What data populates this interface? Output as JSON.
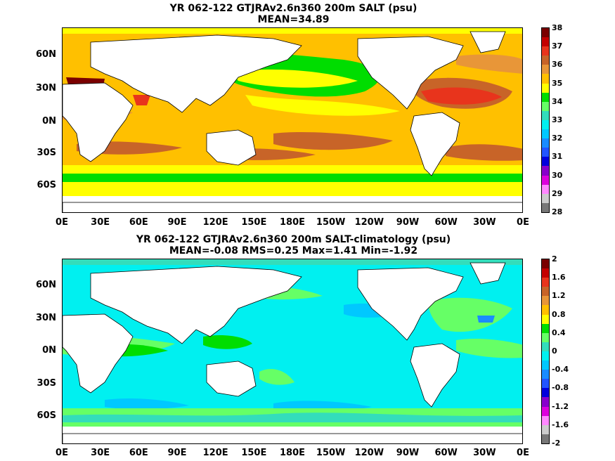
{
  "panels": [
    {
      "title": "YR 062-122 GTJRAv2.6n360 200m SALT (psu)",
      "subtitle": "MEAN=34.89",
      "colorbar": {
        "labels": [
          "38",
          "37",
          "36",
          "35",
          "34",
          "33",
          "32",
          "31",
          "30",
          "29",
          "28"
        ],
        "colors": [
          "#7a0000",
          "#c40000",
          "#e8341c",
          "#c86428",
          "#e89638",
          "#ffc000",
          "#ffff00",
          "#00dd00",
          "#66ff66",
          "#33ddbb",
          "#00f0f0",
          "#00c8ff",
          "#1a8cff",
          "#2255ff",
          "#0000dd",
          "#8800cc",
          "#dd00dd",
          "#ff88ff",
          "#cccccc",
          "#777777"
        ]
      }
    },
    {
      "title": "YR 062-122 GTJRAv2.6n360 200m SALT-climatology (psu)",
      "subtitle": "MEAN=-0.08   RMS=0.25   Max=1.41   Min=-1.92",
      "colorbar": {
        "labels": [
          "2",
          "1.6",
          "1.2",
          "0.8",
          "0.4",
          "0",
          "-0.4",
          "-0.8",
          "-1.2",
          "-1.6",
          "-2"
        ],
        "colors": [
          "#7a0000",
          "#c40000",
          "#e8341c",
          "#c86428",
          "#e89638",
          "#ffc000",
          "#ffff00",
          "#00dd00",
          "#66ff66",
          "#33ddbb",
          "#00f0f0",
          "#00c8ff",
          "#1a8cff",
          "#2255ff",
          "#0000dd",
          "#8800cc",
          "#dd00dd",
          "#ff88ff",
          "#cccccc",
          "#777777"
        ]
      }
    }
  ],
  "lat_labels": [
    "60N",
    "30N",
    "0N",
    "30S",
    "60S"
  ],
  "lon_labels": [
    "0E",
    "30E",
    "60E",
    "90E",
    "120E",
    "150E",
    "180E",
    "150W",
    "120W",
    "90W",
    "60W",
    "30W",
    "0E"
  ]
}
